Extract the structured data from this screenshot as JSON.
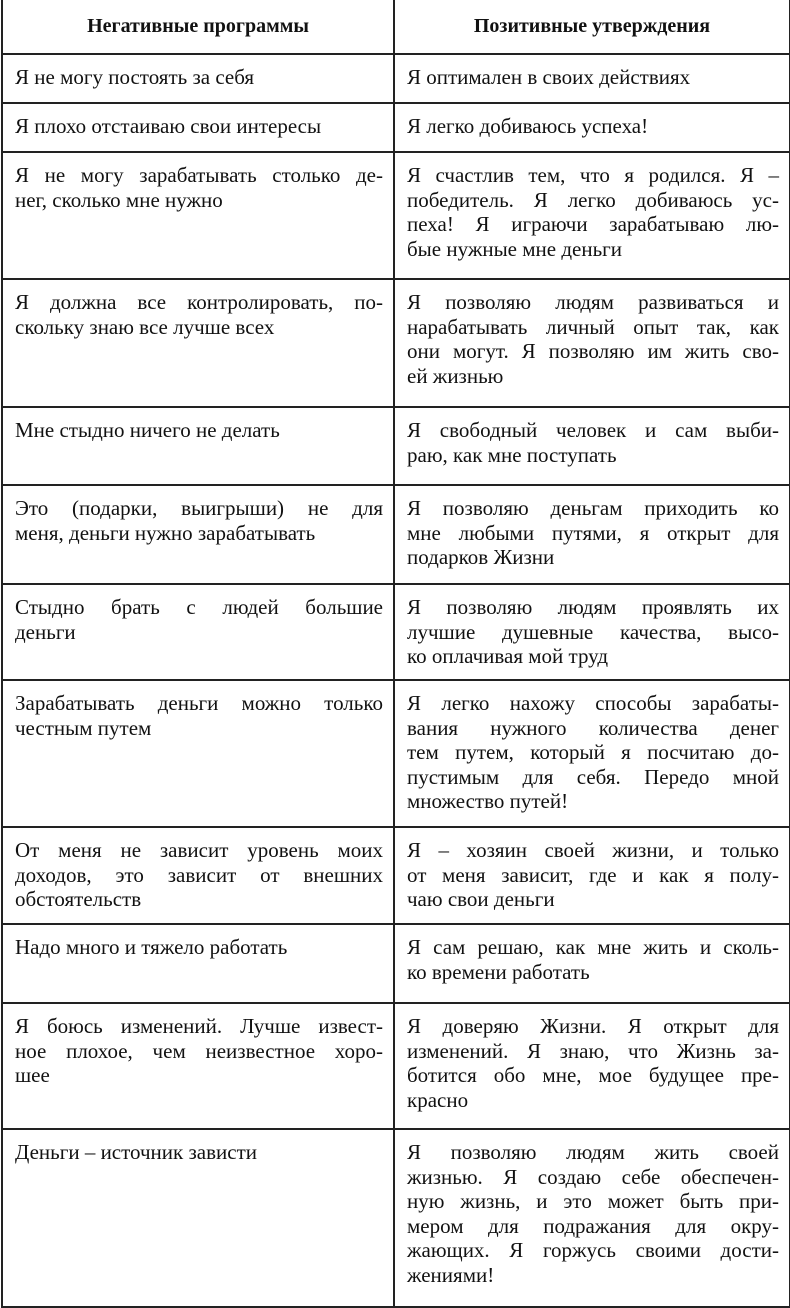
{
  "header": {
    "negative": "Негативные программы",
    "positive": "Позитивные утверждения"
  },
  "rows": [
    {
      "negative": [
        "Я не могу постоять за себя"
      ],
      "positive": [
        "Я оптимален в своих действиях"
      ]
    },
    {
      "negative": [
        "Я плохо отстаиваю свои интересы"
      ],
      "positive": [
        "Я легко добиваюсь успеха!"
      ]
    },
    {
      "negative": [
        "Я не могу зарабатывать столько де-",
        "нег, сколько мне нужно"
      ],
      "positive": [
        "Я счастлив тем, что я родился. Я –",
        "победитель. Я легко добиваюсь ус-",
        "пеха! Я играючи зарабатываю лю-",
        "бые нужные мне деньги"
      ]
    },
    {
      "negative": [
        "Я должна все контролировать, по-",
        "скольку знаю все лучше всех"
      ],
      "positive": [
        "Я позволяю людям развиваться и",
        "нарабатывать личный опыт так, как",
        "они могут. Я позволяю им жить сво-",
        "ей жизнью"
      ]
    },
    {
      "negative": [
        "Мне стыдно ничего не делать"
      ],
      "positive": [
        "Я свободный человек и сам выби-",
        "раю, как мне поступать"
      ]
    },
    {
      "negative": [
        "Это (подарки, выигрыши) не для",
        "меня, деньги нужно зарабатывать"
      ],
      "positive": [
        "Я позволяю деньгам приходить ко",
        "мне любыми путями, я открыт для",
        "подарков Жизни"
      ]
    },
    {
      "negative": [
        "Стыдно брать с людей большие",
        "деньги"
      ],
      "positive": [
        "Я позволяю людям проявлять их",
        "лучшие душевные качества, высо-",
        "ко оплачивая мой труд"
      ]
    },
    {
      "negative": [
        "Зарабатывать деньги можно только",
        "честным путем"
      ],
      "positive": [
        "Я легко нахожу способы зарабаты-",
        "вания нужного количества денег",
        "тем путем, который я посчитаю до-",
        "пустимым для себя. Передо мной",
        "множество путей!"
      ]
    },
    {
      "negative": [
        "От меня не зависит уровень моих",
        "доходов, это зависит от внешних",
        "обстоятельств"
      ],
      "positive": [
        "Я – хозяин своей жизни, и только",
        "от меня зависит, где и как я полу-",
        "чаю свои деньги"
      ]
    },
    {
      "negative": [
        "Надо много и тяжело работать"
      ],
      "positive": [
        "Я сам решаю, как мне жить и сколь-",
        "ко времени работать"
      ]
    },
    {
      "negative": [
        "Я боюсь изменений. Лучше извест-",
        "ное плохое, чем неизвестное хоро-",
        "шее"
      ],
      "positive": [
        "Я доверяю Жизни. Я открыт для",
        "изменений. Я знаю, что Жизнь за-",
        "ботится обо мне, мое будущее пре-",
        "красно"
      ]
    },
    {
      "negative": [
        "Деньги – источник зависти"
      ],
      "positive": [
        "Я позволяю людям жить своей",
        "жизнью. Я создаю себе обеспечен-",
        "ную жизнь, и это может быть при-",
        "мером для подражания для окру-",
        "жающих. Я горжусь своими дости-",
        "жениями!"
      ]
    }
  ]
}
